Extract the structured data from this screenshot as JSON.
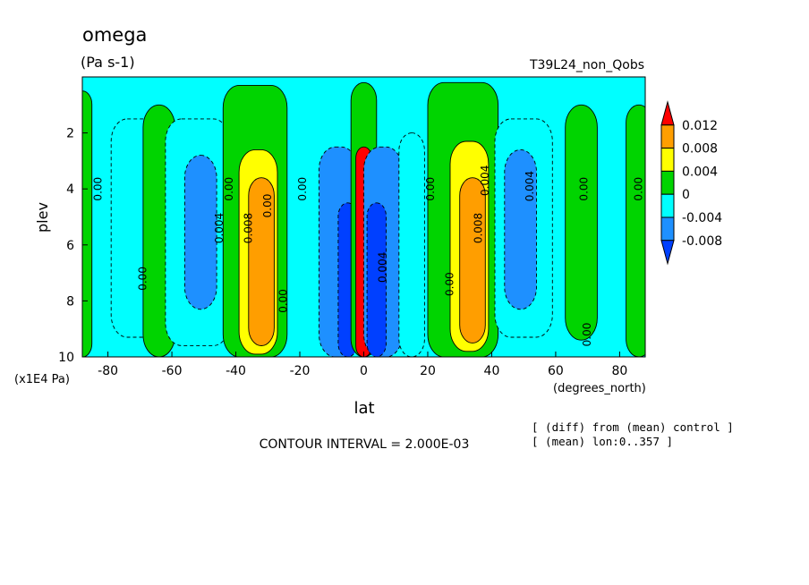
{
  "chart_data": {
    "type": "heatmap",
    "title": "omega",
    "units": "(Pa s-1)",
    "run_label": "T39L24_non_Qobs",
    "xlabel": "lat",
    "x_units": "(degrees_north)",
    "ylabel": "plev",
    "y_units": "(x1E4 Pa)",
    "xlim": [
      -88,
      88
    ],
    "ylim": [
      0,
      10
    ],
    "y_reversed": true,
    "x_ticks": [
      "-80",
      "-60",
      "-40",
      "-20",
      "0",
      "20",
      "40",
      "60",
      "80"
    ],
    "y_ticks": [
      "2",
      "4",
      "6",
      "8",
      "10"
    ],
    "grid": false,
    "contour_interval_text": "CONTOUR INTERVAL = 2.000E-03",
    "notes": [
      "[ (diff) from (mean) control ]",
      "[ (mean) lon:0..357 ]"
    ],
    "colorbar": {
      "labels": [
        "0.012",
        "0.008",
        "0.004",
        "0",
        "-0.004",
        "-0.008"
      ],
      "bands": [
        {
          "lower": 0.012,
          "upper": null,
          "color": "#ff0000"
        },
        {
          "lower": 0.008,
          "upper": 0.012,
          "color": "#ff9e00"
        },
        {
          "lower": 0.004,
          "upper": 0.008,
          "color": "#ffff00"
        },
        {
          "lower": 0.0,
          "upper": 0.004,
          "color": "#00d400"
        },
        {
          "lower": -0.004,
          "upper": 0.0,
          "color": "#00ffff"
        },
        {
          "lower": -0.008,
          "upper": -0.004,
          "color": "#1e90ff"
        },
        {
          "lower": null,
          "upper": -0.008,
          "color": "#0040ff"
        }
      ]
    },
    "features": [
      {
        "lat": -88,
        "plev_top": 0.5,
        "plev_bottom": 10,
        "half_width_deg": 3,
        "sign": "positive",
        "level": 0.002
      },
      {
        "lat": -71,
        "plev_top": 1.5,
        "plev_bottom": 9.3,
        "half_width_deg": 8,
        "sign": "negative",
        "level": -0.002
      },
      {
        "lat": -64,
        "plev_top": 1.0,
        "plev_bottom": 10,
        "half_width_deg": 5,
        "sign": "positive",
        "level": 0.002
      },
      {
        "lat": -52,
        "plev_top": 1.5,
        "plev_bottom": 9.6,
        "half_width_deg": 10,
        "sign": "negative",
        "level": -0.002
      },
      {
        "lat": -51,
        "plev_top": 2.8,
        "plev_bottom": 8.3,
        "half_width_deg": 5,
        "sign": "negative",
        "level": -0.005
      },
      {
        "lat": -34,
        "plev_top": 0.3,
        "plev_bottom": 10,
        "half_width_deg": 10,
        "sign": "positive",
        "level": 0.002
      },
      {
        "lat": -33,
        "plev_top": 2.6,
        "plev_bottom": 9.9,
        "half_width_deg": 6,
        "sign": "positive",
        "level": 0.005
      },
      {
        "lat": -32,
        "plev_top": 3.6,
        "plev_bottom": 9.6,
        "half_width_deg": 4,
        "sign": "positive",
        "level": 0.009
      },
      {
        "lat": -8,
        "plev_top": 2.5,
        "plev_bottom": 10,
        "half_width_deg": 6,
        "sign": "negative",
        "level": -0.005
      },
      {
        "lat": -5,
        "plev_top": 4.5,
        "plev_bottom": 10,
        "half_width_deg": 3,
        "sign": "negative",
        "level": -0.009
      },
      {
        "lat": 0,
        "plev_top": 0.2,
        "plev_bottom": 10,
        "half_width_deg": 4,
        "sign": "positive",
        "level": 0.002
      },
      {
        "lat": 0,
        "plev_top": 2.5,
        "plev_bottom": 10,
        "half_width_deg": 2.5,
        "sign": "positive",
        "level": 0.013
      },
      {
        "lat": 6,
        "plev_top": 2.5,
        "plev_bottom": 10,
        "half_width_deg": 6,
        "sign": "negative",
        "level": -0.005
      },
      {
        "lat": 4,
        "plev_top": 4.5,
        "plev_bottom": 10,
        "half_width_deg": 3,
        "sign": "negative",
        "level": -0.009
      },
      {
        "lat": 15,
        "plev_top": 2.0,
        "plev_bottom": 10,
        "half_width_deg": 4,
        "sign": "negative",
        "level": -0.002
      },
      {
        "lat": 31,
        "plev_top": 0.2,
        "plev_bottom": 10,
        "half_width_deg": 11,
        "sign": "positive",
        "level": 0.002
      },
      {
        "lat": 33,
        "plev_top": 2.3,
        "plev_bottom": 9.8,
        "half_width_deg": 6,
        "sign": "positive",
        "level": 0.005
      },
      {
        "lat": 34,
        "plev_top": 3.6,
        "plev_bottom": 9.5,
        "half_width_deg": 4,
        "sign": "positive",
        "level": 0.009
      },
      {
        "lat": 50,
        "plev_top": 1.5,
        "plev_bottom": 9.3,
        "half_width_deg": 9,
        "sign": "negative",
        "level": -0.002
      },
      {
        "lat": 49,
        "plev_top": 2.6,
        "plev_bottom": 8.3,
        "half_width_deg": 5,
        "sign": "negative",
        "level": -0.005
      },
      {
        "lat": 68,
        "plev_top": 1.0,
        "plev_bottom": 9.4,
        "half_width_deg": 5,
        "sign": "positive",
        "level": 0.002
      },
      {
        "lat": 86,
        "plev_top": 1.0,
        "plev_bottom": 10,
        "half_width_deg": 4,
        "sign": "positive",
        "level": 0.002
      }
    ],
    "contour_labels": [
      {
        "text": "0.00",
        "lat": -83,
        "plev": 4.0
      },
      {
        "text": "0.00",
        "lat": -69,
        "plev": 7.2
      },
      {
        "text": "0.004",
        "lat": -45,
        "plev": 5.4
      },
      {
        "text": "0.00",
        "lat": -42,
        "plev": 4.0
      },
      {
        "text": "0.008",
        "lat": -36,
        "plev": 5.4
      },
      {
        "text": "0.00",
        "lat": -30,
        "plev": 4.6
      },
      {
        "text": "0.00",
        "lat": -25,
        "plev": 8.0
      },
      {
        "text": "0.00",
        "lat": -19,
        "plev": 4.0
      },
      {
        "text": "0.004",
        "lat": 6,
        "plev": 6.8
      },
      {
        "text": "0.00",
        "lat": 21,
        "plev": 4.0
      },
      {
        "text": "0.00",
        "lat": 27,
        "plev": 7.4
      },
      {
        "text": "0.008",
        "lat": 36,
        "plev": 5.4
      },
      {
        "text": "0.004",
        "lat": 38,
        "plev": 3.7
      },
      {
        "text": "0.004",
        "lat": 52,
        "plev": 3.9
      },
      {
        "text": "0.00",
        "lat": 69,
        "plev": 4.0
      },
      {
        "text": "0.00",
        "lat": 70,
        "plev": 9.2
      },
      {
        "text": "0.00",
        "lat": 86,
        "plev": 4.0
      }
    ]
  }
}
